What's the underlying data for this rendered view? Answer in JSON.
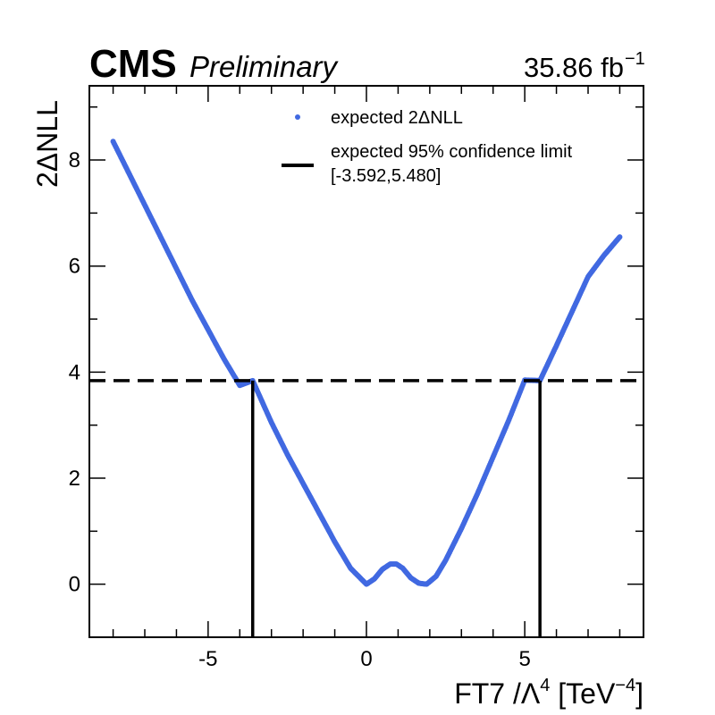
{
  "header": {
    "experiment": "CMS",
    "status": "Preliminary",
    "luminosity": "35.86 fb",
    "luminosity_exp": "−1"
  },
  "chart_data": {
    "type": "scatter",
    "xlabel": "FT7 /Λ",
    "xlabel_exp1": "4",
    "xlabel_unit": " [TeV",
    "xlabel_exp2": "−4",
    "xlabel_close": "]",
    "ylabel": "2ΔNLL",
    "xlim": [
      -8.75,
      8.75
    ],
    "ylim": [
      -1.0,
      9.4
    ],
    "x_ticks": [
      -5,
      0,
      5
    ],
    "x_tick_labels": [
      "-5",
      "0",
      "5"
    ],
    "y_ticks": [
      0,
      2,
      4,
      6,
      8
    ],
    "y_tick_labels": [
      "0",
      "2",
      "4",
      "6",
      "8"
    ],
    "grid": false,
    "legend_position": "top-center",
    "series": [
      {
        "name": "expected 2ΔNLL",
        "style": "dots",
        "color": "#4169e1",
        "x": [
          -8.0,
          -7.5,
          -7.0,
          -6.5,
          -6.0,
          -5.5,
          -5.0,
          -4.5,
          -4.0,
          -3.592,
          -3.0,
          -2.5,
          -2.0,
          -1.5,
          -1.0,
          -0.5,
          0.0,
          0.25,
          0.5,
          0.75,
          0.95,
          1.15,
          1.4,
          1.65,
          1.9,
          2.2,
          2.5,
          3.0,
          3.5,
          4.0,
          4.5,
          5.0,
          5.48,
          6.0,
          6.5,
          7.0,
          7.5,
          8.0
        ],
        "y": [
          8.35,
          7.75,
          7.15,
          6.55,
          5.95,
          5.35,
          4.8,
          4.25,
          3.75,
          3.84,
          3.05,
          2.45,
          1.9,
          1.35,
          0.8,
          0.3,
          0.0,
          0.1,
          0.28,
          0.38,
          0.38,
          0.3,
          0.12,
          0.02,
          0.0,
          0.15,
          0.45,
          1.05,
          1.7,
          2.4,
          3.1,
          3.85,
          3.84,
          4.5,
          5.15,
          5.8,
          6.2,
          6.55
        ]
      }
    ],
    "confidence": {
      "legend_label_line1": "expected 95% confidence limit",
      "legend_label_line2": "[-3.592,5.480]",
      "threshold": 3.84,
      "lower": -3.592,
      "upper": 5.48,
      "color": "#000000"
    }
  }
}
